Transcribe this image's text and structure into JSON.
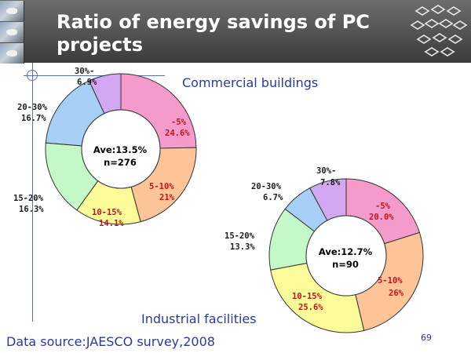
{
  "slide": {
    "title": "Ratio of energy savings of PC projects",
    "source": "Data source:JAESCO survey,2008",
    "page_number": "69"
  },
  "chart_data": [
    {
      "type": "pie",
      "title": "Commercial buildings",
      "center_text": [
        "Ave:13.5%",
        "n=276"
      ],
      "categories": [
        "-5%",
        "5-10%",
        "10-15%",
        "15-20%",
        "20-30%",
        "30%-"
      ],
      "values": [
        24.6,
        21,
        14.1,
        16.3,
        16.7,
        6.9
      ],
      "labels": [
        "24.6%",
        "21%",
        "14.1%",
        "16.3%",
        "16.7%",
        "6.9%"
      ],
      "colors": [
        "#f59bcb",
        "#fcc497",
        "#fbfb99",
        "#c5f8c8",
        "#a8cff5",
        "#d3a8f3"
      ]
    },
    {
      "type": "pie",
      "title": "Industrial facilities",
      "center_text": [
        "Ave:12.7%",
        "n=90"
      ],
      "categories": [
        "-5%",
        "5-10%",
        "10-15%",
        "15-20%",
        "20-30%",
        "30%-"
      ],
      "values": [
        20.0,
        26,
        25.6,
        13.3,
        6.7,
        7.8
      ],
      "labels": [
        "20.0%",
        "26%",
        "25.6%",
        "13.3%",
        "6.7%",
        "7.8%"
      ],
      "colors": [
        "#f59bcb",
        "#fcc497",
        "#fbfb99",
        "#c5f8c8",
        "#a8cff5",
        "#d3a8f3"
      ]
    }
  ]
}
